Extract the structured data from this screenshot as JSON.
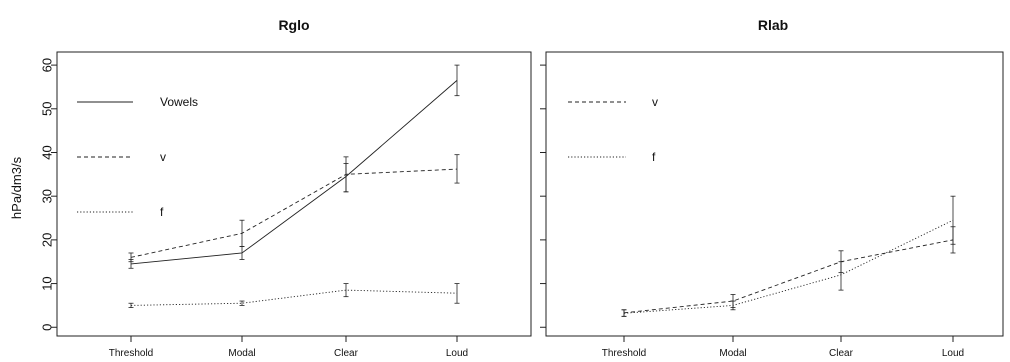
{
  "y_axis_label": "hPa/dm3/s",
  "chart_data": [
    {
      "type": "line",
      "title": "Rglo",
      "ylabel": "hPa/dm3/s",
      "xlabel": "",
      "categories": [
        "Threshold",
        "Modal",
        "Clear",
        "Loud"
      ],
      "ylim": [
        -2,
        63
      ],
      "yticks": [
        0,
        10,
        20,
        30,
        40,
        50,
        60
      ],
      "grid": false,
      "legend_position": "left",
      "series": [
        {
          "name": "Vowels",
          "linestyle": "solid",
          "values": [
            14.5,
            17,
            34.5,
            56.5
          ],
          "err_low": [
            13.5,
            15.5,
            31,
            53
          ],
          "err_high": [
            15.5,
            18.5,
            37.5,
            60
          ]
        },
        {
          "name": "v",
          "linestyle": "dashed",
          "values": [
            16,
            21.5,
            35,
            36.2
          ],
          "err_low": [
            15,
            18.5,
            31,
            33
          ],
          "err_high": [
            17,
            24.5,
            39,
            39.5
          ]
        },
        {
          "name": "f",
          "linestyle": "dotted",
          "values": [
            5,
            5.5,
            8.5,
            7.8
          ],
          "err_low": [
            4.5,
            5,
            7,
            5.5
          ],
          "err_high": [
            5.5,
            6,
            10,
            10
          ]
        }
      ]
    },
    {
      "type": "line",
      "title": "Rlab",
      "ylabel": "",
      "xlabel": "",
      "categories": [
        "Threshold",
        "Modal",
        "Clear",
        "Loud"
      ],
      "ylim": [
        -2,
        63
      ],
      "yticks": [
        0,
        10,
        20,
        30,
        40,
        50,
        60
      ],
      "grid": false,
      "legend_position": "left",
      "series": [
        {
          "name": "v",
          "linestyle": "dashed",
          "values": [
            3.3,
            6,
            15,
            20
          ],
          "err_low": [
            2.5,
            4.5,
            12.5,
            17
          ],
          "err_high": [
            4,
            7.5,
            17.5,
            23
          ]
        },
        {
          "name": "f",
          "linestyle": "dotted",
          "values": [
            3.2,
            5,
            12,
            24.5
          ],
          "err_low": [
            2.5,
            4,
            8.5,
            19
          ],
          "err_high": [
            4,
            6,
            15,
            30
          ]
        }
      ]
    }
  ]
}
